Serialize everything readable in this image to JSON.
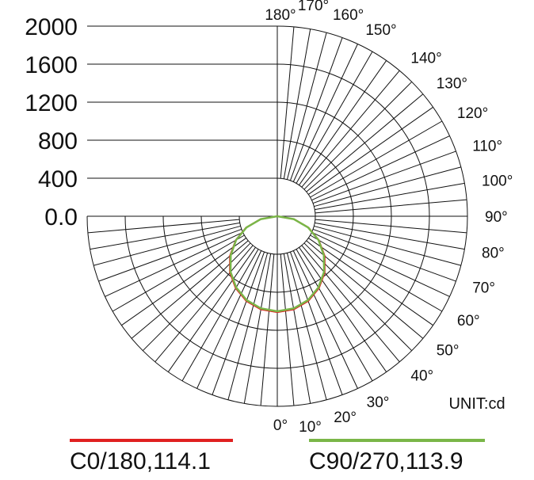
{
  "chart_data": {
    "type": "polar",
    "unit_label": "UNIT:cd",
    "radial_ticks": [
      "2000",
      "1600",
      "1200",
      "800",
      "400",
      "0.0"
    ],
    "radial_tick_values": [
      2000,
      1600,
      1200,
      800,
      400,
      0
    ],
    "rmax": 2000,
    "angle_labels": [
      "0°",
      "10°",
      "20°",
      "30°",
      "40°",
      "50°",
      "60°",
      "70°",
      "80°",
      "90°",
      "100°",
      "110°",
      "120°",
      "130°",
      "140°",
      "150°",
      "160°",
      "170°",
      "180°"
    ],
    "angles": [
      0,
      10,
      20,
      30,
      40,
      50,
      60,
      70,
      80,
      90,
      100,
      110,
      120,
      130,
      140,
      150,
      160,
      170,
      180
    ],
    "series": [
      {
        "name": "C0/180,114.1",
        "color": "#e02020",
        "angles": [
          0,
          10,
          20,
          30,
          40,
          50,
          60,
          70,
          80,
          90
        ],
        "values": [
          1010,
          995,
          950,
          875,
          775,
          650,
          505,
          350,
          180,
          0
        ]
      },
      {
        "name": "C90/270,113.9",
        "color": "#7ab648",
        "angles": [
          0,
          10,
          20,
          30,
          40,
          50,
          60,
          70,
          80,
          90
        ],
        "values": [
          1000,
          985,
          940,
          865,
          765,
          640,
          500,
          345,
          175,
          0
        ]
      }
    ]
  }
}
